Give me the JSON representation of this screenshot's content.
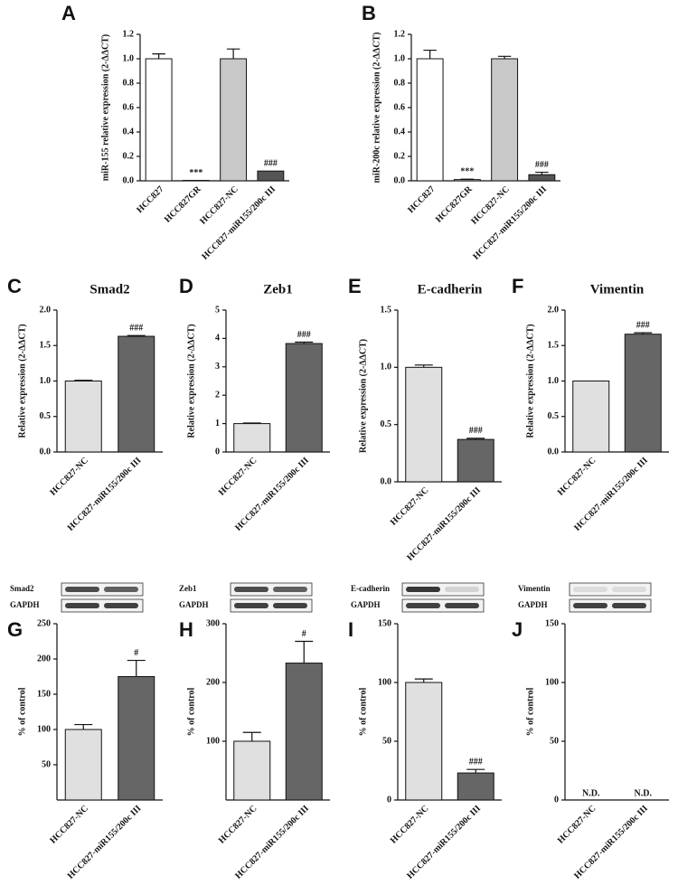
{
  "chart_data": [
    {
      "type": "bar",
      "panel": "A",
      "ylabel": "miR-155 relative expression (2-ΔΔCT)",
      "categories": [
        "HCC827",
        "HCC827GR",
        "HCC827-NC",
        "HCC827-miR155/200c III"
      ],
      "values": [
        1.0,
        0.003,
        1.0,
        0.08
      ],
      "errors": [
        0.04,
        0,
        0.08,
        0
      ],
      "colors": [
        "#ffffff",
        "#ffffff",
        "#c8c8c8",
        "#555555"
      ],
      "annotations": [
        {
          "category": "HCC827GR",
          "text": "***"
        },
        {
          "category": "HCC827-miR155/200c III",
          "text": "###"
        }
      ],
      "ylim": [
        0,
        1.2
      ],
      "yticks": [
        {
          "value": 0,
          "label": "0.0"
        },
        0.2,
        0.4,
        0.6,
        0.8,
        {
          "value": 1,
          "label": "1.0"
        },
        1.2
      ]
    },
    {
      "type": "bar",
      "panel": "B",
      "ylabel": "miR-200c relative expression (2-ΔΔCT)",
      "categories": [
        "HCC827",
        "HCC827GR",
        "HCC827-NC",
        "HCC827-miR155/200c III"
      ],
      "values": [
        1.0,
        0.01,
        1.0,
        0.05
      ],
      "errors": [
        0.07,
        0.003,
        0.02,
        0.02
      ],
      "colors": [
        "#ffffff",
        "#ffffff",
        "#c8c8c8",
        "#555555"
      ],
      "annotations": [
        {
          "category": "HCC827GR",
          "text": "***"
        },
        {
          "category": "HCC827-miR155/200c III",
          "text": "###"
        }
      ],
      "ylim": [
        0,
        1.2
      ],
      "yticks": [
        {
          "value": 0,
          "label": "0.0"
        },
        0.2,
        0.4,
        0.6,
        0.8,
        {
          "value": 1,
          "label": "1.0"
        },
        1.2
      ]
    },
    {
      "type": "bar",
      "panel": "C",
      "title": "Smad2",
      "ylabel": "Relative expression (2-ΔΔCT)",
      "categories": [
        "HCC827-NC",
        "HCC827-miR155/200c III"
      ],
      "values": [
        1.0,
        1.63
      ],
      "errors": [
        0.01,
        0.01
      ],
      "colors": [
        "#e0e0e0",
        "#666666"
      ],
      "annotations": [
        {
          "category": "HCC827-miR155/200c III",
          "text": "###"
        }
      ],
      "ylim": [
        0,
        2
      ],
      "yticks": [
        {
          "value": 0,
          "label": "0.0"
        },
        0.5,
        {
          "value": 1,
          "label": "1.0"
        },
        1.5,
        {
          "value": 2,
          "label": "2.0"
        }
      ]
    },
    {
      "type": "bar",
      "panel": "D",
      "title": "Zeb1",
      "ylabel": "Relative expression (2-ΔΔCT)",
      "categories": [
        "HCC827-NC",
        "HCC827-miR155/200c III"
      ],
      "values": [
        1.0,
        3.82
      ],
      "errors": [
        0.02,
        0.05
      ],
      "colors": [
        "#e0e0e0",
        "#666666"
      ],
      "annotations": [
        {
          "category": "HCC827-miR155/200c III",
          "text": "###"
        }
      ],
      "ylim": [
        0,
        5
      ],
      "yticks": [
        0,
        1,
        2,
        3,
        4,
        5
      ]
    },
    {
      "type": "bar",
      "panel": "E",
      "title": "E-cadherin",
      "ylabel": "Relative expression (2-ΔΔCT)",
      "categories": [
        "HCC827-NC",
        "HCC827-miR155/200c III"
      ],
      "values": [
        1.0,
        0.37
      ],
      "errors": [
        0.02,
        0.01
      ],
      "colors": [
        "#e0e0e0",
        "#666666"
      ],
      "annotations": [
        {
          "category": "HCC827-miR155/200c III",
          "text": "###"
        }
      ],
      "ylim": [
        0,
        1.5
      ],
      "yticks": [
        {
          "value": 0,
          "label": "0.0"
        },
        0.5,
        {
          "value": 1,
          "label": "1.0"
        },
        1.5
      ]
    },
    {
      "type": "bar",
      "panel": "F",
      "title": "Vimentin",
      "ylabel": "Relative expression (2-ΔΔCT)",
      "categories": [
        "HCC827-NC",
        "HCC827-miR155/200c III"
      ],
      "values": [
        1.0,
        1.66
      ],
      "errors": [
        0,
        0.02
      ],
      "colors": [
        "#e0e0e0",
        "#666666"
      ],
      "annotations": [
        {
          "category": "HCC827-miR155/200c III",
          "text": "###"
        }
      ],
      "ylim": [
        0,
        2
      ],
      "yticks": [
        {
          "value": 0,
          "label": "0.0"
        },
        0.5,
        {
          "value": 1,
          "label": "1.0"
        },
        1.5,
        {
          "value": 2,
          "label": "2.0"
        }
      ]
    },
    {
      "type": "bar",
      "panel": "G",
      "blots": [
        "Smad2",
        "GAPDH"
      ],
      "ylabel": "% of control",
      "categories": [
        "HCC827-NC",
        "HCC827-miR155/200c III"
      ],
      "values": [
        100,
        175
      ],
      "errors": [
        7,
        23
      ],
      "colors": [
        "#e0e0e0",
        "#666666"
      ],
      "annotations": [
        {
          "category": "HCC827-miR155/200c III",
          "text": "#"
        }
      ],
      "ylim": [
        0,
        250
      ],
      "yticks": [
        50,
        100,
        150,
        200,
        250
      ]
    },
    {
      "type": "bar",
      "panel": "H",
      "blots": [
        "Zeb1",
        "GAPDH"
      ],
      "ylabel": "% of control",
      "categories": [
        "HCC827-NC",
        "HCC827-miR155/200c III"
      ],
      "values": [
        100,
        233
      ],
      "errors": [
        15,
        37
      ],
      "colors": [
        "#e0e0e0",
        "#666666"
      ],
      "annotations": [
        {
          "category": "HCC827-miR155/200c III",
          "text": "#"
        }
      ],
      "ylim": [
        0,
        300
      ],
      "yticks": [
        100,
        200,
        300
      ]
    },
    {
      "type": "bar",
      "panel": "I",
      "blots": [
        "E-cadherin",
        "GAPDH"
      ],
      "ylabel": "% of control",
      "categories": [
        "HCC827-NC",
        "HCC827-miR155/200c III"
      ],
      "values": [
        100,
        23
      ],
      "errors": [
        3,
        3
      ],
      "colors": [
        "#e0e0e0",
        "#666666"
      ],
      "annotations": [
        {
          "category": "HCC827-miR155/200c III",
          "text": "###"
        }
      ],
      "ylim": [
        0,
        150
      ],
      "yticks": [
        0,
        50,
        100,
        150
      ]
    },
    {
      "type": "bar",
      "panel": "J",
      "blots": [
        "Vimentin",
        "GAPDH"
      ],
      "ylabel": "% of control",
      "categories": [
        "HCC827-NC",
        "HCC827-miR155/200c III"
      ],
      "values": [
        null,
        null
      ],
      "value_labels": [
        "N.D.",
        "N.D."
      ],
      "colors": [
        "#e0e0e0",
        "#666666"
      ],
      "ylim": [
        0,
        150
      ],
      "yticks": [
        0,
        50,
        100,
        150
      ]
    }
  ]
}
